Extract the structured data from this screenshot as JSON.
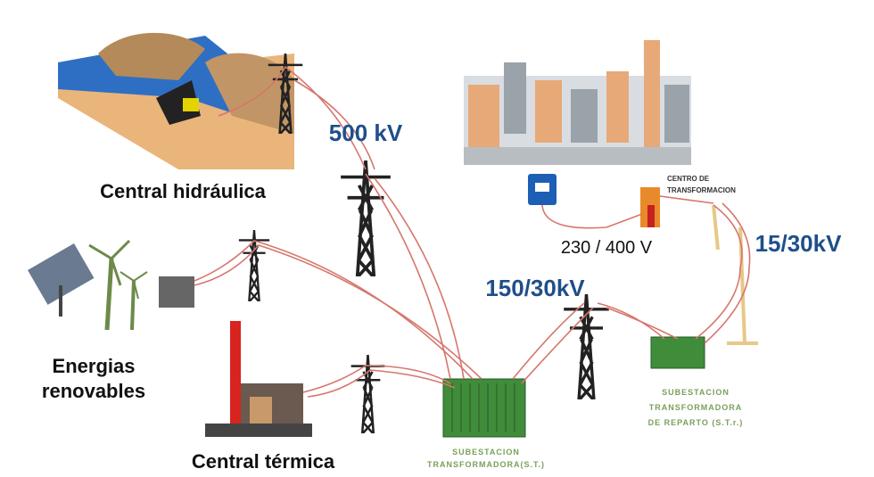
{
  "labels": {
    "hydro": "Central hidráulica",
    "renewables": [
      "Energias",
      "renovables"
    ],
    "thermal": "Central térmica",
    "transformation_center": [
      "CENTRO DE",
      "TRANSFORMACION"
    ],
    "substation": [
      "SUBESTACION",
      "TRANSFORMADORA(S.T.)"
    ],
    "distribution_substation": [
      "SUBESTACION",
      "TRANSFORMADORA",
      "DE REPARTO (S.T.r.)"
    ]
  },
  "voltages": {
    "high": "500 kV",
    "subtransmission": "150/30kV",
    "distribution": "15/30kV",
    "low": "230 / 400 V"
  }
}
